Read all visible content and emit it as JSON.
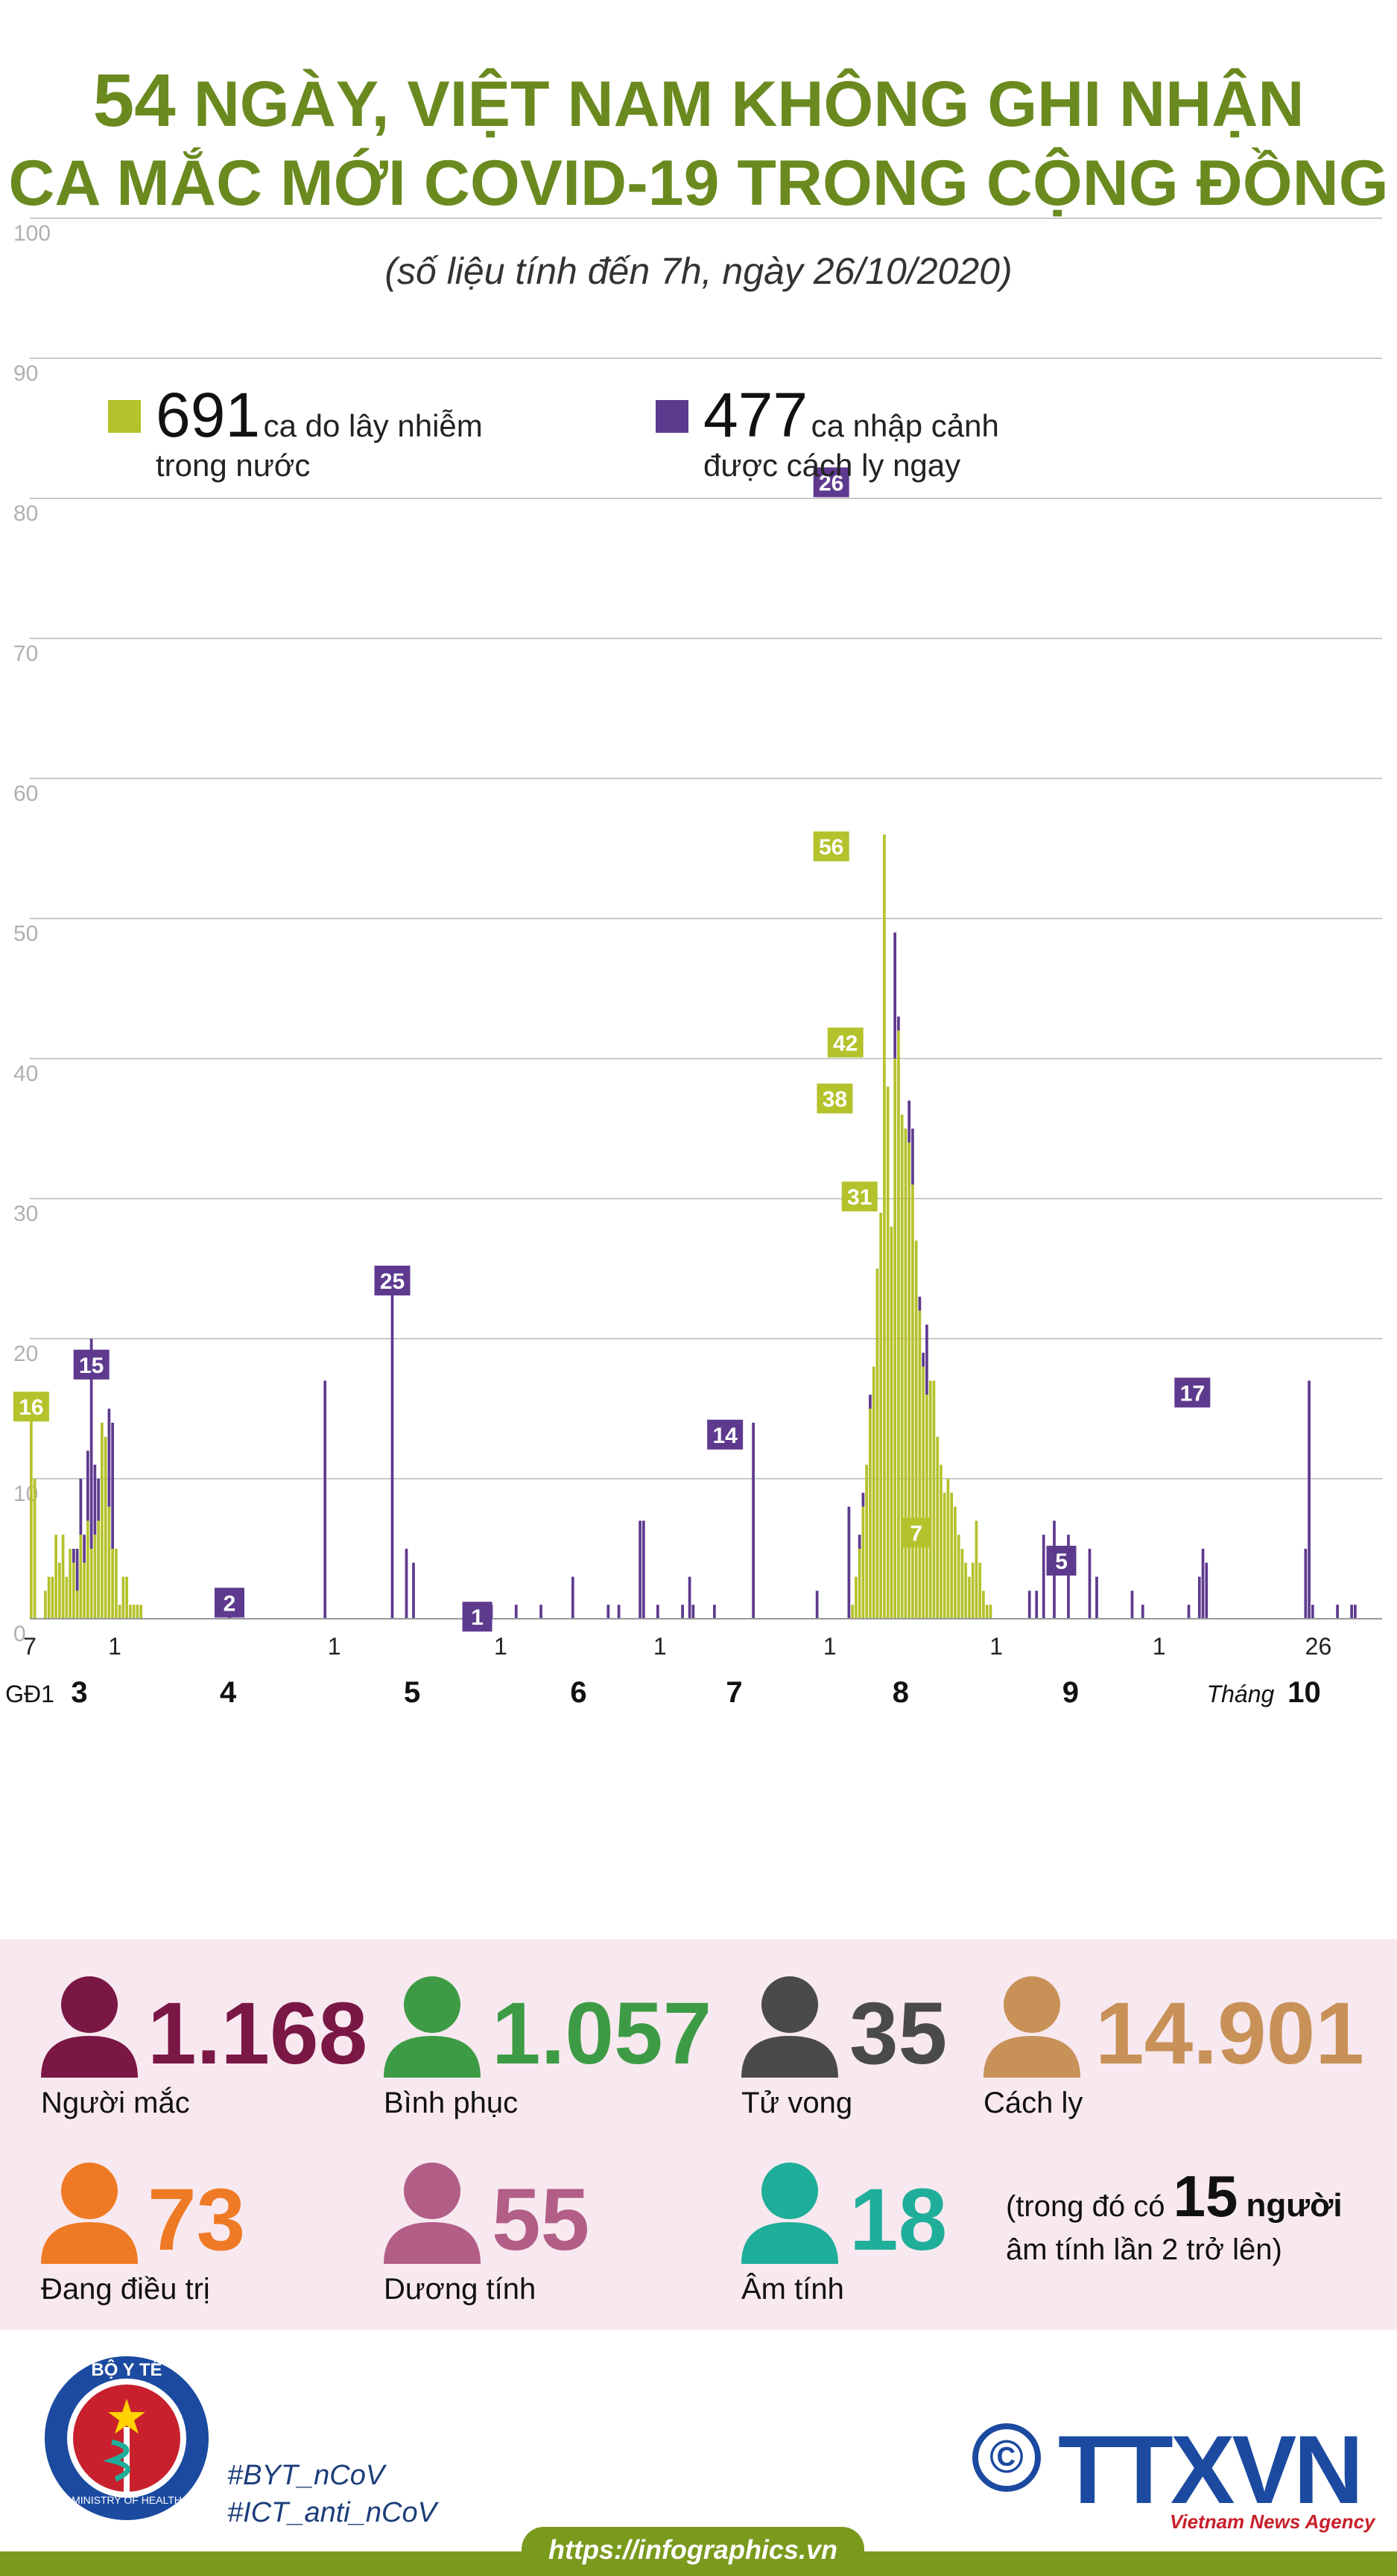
{
  "title": {
    "line1_number": "54",
    "line1_text": "NGÀY, VIỆT NAM KHÔNG GHI NHẬN",
    "line2": "CA MẮC MỚI COVID-19 TRONG CỘNG ĐỒNG"
  },
  "subtitle": "(số liệu tính đến 7h, ngày 26/10/2020)",
  "legend": [
    {
      "number": "691",
      "text1": "ca do lây nhiễm",
      "text2": "trong nước",
      "color": "#b4c22c"
    },
    {
      "number": "477",
      "text1": "ca nhập cảnh",
      "text2": "được cách ly ngay",
      "color": "#5e3a8e"
    }
  ],
  "chart_data": {
    "type": "bar",
    "stacked": true,
    "ylim": [
      0,
      100
    ],
    "yticks": [
      "0",
      "10",
      "20",
      "30",
      "40",
      "50",
      "60",
      "70",
      "80",
      "90",
      "100"
    ],
    "grid": true,
    "series": [
      {
        "name": "ca do lây nhiễm trong nước",
        "color": "#b4c22c",
        "values": [
          16,
          10,
          0,
          0,
          2,
          3,
          3,
          6,
          4,
          6,
          3,
          5,
          4,
          2,
          6,
          4,
          7,
          5,
          6,
          7,
          14,
          13,
          8,
          5,
          5,
          1,
          3,
          3,
          1,
          1,
          1,
          1,
          0,
          0,
          0,
          0,
          0,
          0,
          0,
          0,
          0,
          0,
          0,
          0,
          0,
          0,
          0,
          0,
          0,
          0,
          0,
          0,
          0,
          0,
          0,
          0,
          0,
          0,
          0,
          0,
          0,
          0,
          0,
          0,
          0,
          0,
          0,
          0,
          0,
          0,
          0,
          0,
          0,
          0,
          0,
          0,
          0,
          0,
          0,
          0,
          0,
          0,
          0,
          0,
          0,
          0,
          0,
          0,
          0,
          0,
          0,
          0,
          0,
          0,
          0,
          0,
          0,
          0,
          0,
          0,
          0,
          0,
          0,
          0,
          0,
          0,
          0,
          0,
          0,
          0,
          0,
          0,
          0,
          0,
          0,
          0,
          0,
          0,
          0,
          0,
          0,
          0,
          0,
          0,
          0,
          0,
          0,
          0,
          0,
          0,
          0,
          0,
          0,
          0,
          0,
          0,
          0,
          0,
          0,
          0,
          0,
          0,
          0,
          0,
          0,
          0,
          0,
          0,
          0,
          0,
          0,
          0,
          0,
          0,
          0,
          0,
          0,
          0,
          0,
          0,
          0,
          0,
          0,
          0,
          0,
          0,
          0,
          0,
          0,
          0,
          0,
          0,
          0,
          0,
          0,
          0,
          0,
          0,
          0,
          0,
          0,
          0,
          0,
          0,
          0,
          0,
          0,
          0,
          0,
          0,
          0,
          0,
          0,
          0,
          0,
          0,
          0,
          0,
          0,
          0,
          0,
          0,
          0,
          0,
          0,
          0,
          0,
          0,
          0,
          0,
          0,
          0,
          0,
          0,
          0,
          0,
          0,
          0,
          0,
          0,
          0,
          0,
          0,
          0,
          0,
          0,
          0,
          0,
          0,
          0,
          0,
          0,
          1,
          3,
          5,
          8,
          11,
          15,
          18,
          25,
          29,
          56,
          38,
          28,
          40,
          42,
          36,
          35,
          34,
          31,
          27,
          22,
          18,
          16,
          17,
          17,
          13,
          11,
          9,
          10,
          9,
          8,
          6,
          5,
          4,
          3,
          4,
          7,
          4,
          2,
          1,
          1,
          0,
          0,
          0,
          0,
          0,
          0,
          0,
          0,
          0,
          0,
          0,
          0,
          0,
          0,
          0,
          0,
          0,
          0,
          0,
          0,
          0,
          0,
          0,
          0,
          0,
          0,
          0,
          0,
          0,
          0,
          0,
          0,
          0,
          0,
          0,
          0,
          0,
          0,
          0,
          0,
          0,
          0,
          0,
          0,
          0,
          0,
          0,
          0,
          0,
          0,
          0,
          0,
          0,
          0,
          0,
          0,
          0,
          0,
          0,
          0,
          0,
          0,
          0,
          0,
          0,
          0,
          0,
          0,
          0,
          0,
          0,
          0,
          0,
          0,
          0,
          0,
          0,
          0,
          0,
          0,
          0,
          0,
          0,
          0,
          0,
          0,
          0,
          0,
          0,
          0,
          0,
          0,
          0,
          0,
          0,
          0,
          0,
          0,
          0,
          0,
          0,
          0,
          0,
          0,
          0,
          0,
          0,
          0,
          0,
          0
        ]
      },
      {
        "name": "ca nhập cảnh được cách ly ngay",
        "color": "#5e3a8e",
        "values": [
          0,
          0,
          0,
          0,
          0,
          0,
          0,
          0,
          0,
          0,
          0,
          0,
          1,
          3,
          4,
          2,
          5,
          15,
          5,
          3,
          0,
          0,
          7,
          9,
          0,
          0,
          0,
          0,
          0,
          0,
          0,
          0,
          0,
          0,
          0,
          0,
          0,
          0,
          0,
          0,
          0,
          0,
          0,
          0,
          0,
          0,
          0,
          0,
          0,
          0,
          0,
          0,
          0,
          0,
          0,
          0,
          2,
          0,
          0,
          0,
          0,
          0,
          0,
          0,
          0,
          0,
          0,
          0,
          0,
          0,
          0,
          0,
          0,
          0,
          0,
          0,
          0,
          0,
          0,
          0,
          0,
          0,
          0,
          17,
          0,
          0,
          0,
          0,
          0,
          0,
          0,
          0,
          0,
          0,
          0,
          0,
          0,
          0,
          0,
          0,
          0,
          0,
          25,
          0,
          0,
          0,
          5,
          0,
          4,
          0,
          0,
          0,
          0,
          0,
          0,
          0,
          0,
          0,
          0,
          0,
          0,
          0,
          0,
          0,
          0,
          0,
          0,
          0,
          1,
          1,
          1,
          0,
          0,
          0,
          0,
          0,
          0,
          1,
          0,
          0,
          0,
          0,
          0,
          0,
          1,
          0,
          0,
          0,
          0,
          0,
          0,
          0,
          0,
          3,
          0,
          0,
          0,
          0,
          0,
          0,
          0,
          0,
          0,
          1,
          0,
          0,
          1,
          0,
          0,
          0,
          0,
          0,
          7,
          7,
          0,
          0,
          0,
          1,
          0,
          0,
          0,
          0,
          0,
          0,
          1,
          0,
          3,
          1,
          0,
          0,
          0,
          0,
          0,
          1,
          0,
          0,
          0,
          0,
          0,
          0,
          0,
          0,
          0,
          0,
          14,
          0,
          0,
          0,
          0,
          0,
          0,
          0,
          0,
          0,
          0,
          0,
          0,
          0,
          0,
          0,
          0,
          0,
          2,
          0,
          0,
          0,
          0,
          0,
          0,
          0,
          0,
          8,
          0,
          0,
          1,
          1,
          0,
          1,
          0,
          0,
          0,
          0,
          0,
          0,
          9,
          1,
          0,
          0,
          3,
          4,
          0,
          1,
          1,
          5,
          0,
          0,
          0,
          0,
          0,
          0,
          0,
          0,
          0,
          0,
          0,
          0,
          0,
          0,
          0,
          0,
          0,
          0,
          0,
          0,
          0,
          0,
          0,
          0,
          0,
          0,
          0,
          0,
          2,
          0,
          2,
          0,
          6,
          0,
          0,
          7,
          0,
          0,
          0,
          6,
          0,
          0,
          0,
          0,
          0,
          5,
          0,
          3,
          0,
          0,
          0,
          0,
          0,
          0,
          0,
          0,
          0,
          2,
          0,
          0,
          1,
          0,
          0,
          0,
          0,
          0,
          0,
          0,
          0,
          0,
          0,
          0,
          0,
          1,
          0,
          0,
          3,
          5,
          4,
          0,
          0,
          0,
          0,
          0,
          0,
          0,
          0,
          0,
          0,
          0,
          0,
          0,
          0,
          0,
          0,
          0,
          0,
          0,
          0,
          0,
          0,
          0,
          0,
          0,
          0,
          0,
          5,
          17,
          1,
          0,
          0,
          0,
          0,
          0,
          0,
          1,
          0,
          0,
          0,
          1,
          1,
          0,
          0,
          0,
          0,
          0,
          0,
          0,
          0,
          0,
          0,
          0,
          0,
          0,
          0,
          0,
          1,
          1,
          1,
          1,
          1,
          1,
          1,
          1,
          1,
          0,
          0,
          0,
          0,
          0,
          0,
          0,
          0,
          0,
          0,
          1,
          1,
          1,
          3,
          1,
          1,
          1,
          2,
          1,
          0,
          0,
          0,
          0,
          0,
          0,
          0,
          0,
          8,
          0,
          0,
          0,
          0,
          0,
          6,
          0,
          0,
          3,
          0,
          0,
          0,
          12,
          8,
          0
        ]
      }
    ],
    "annotations": [
      {
        "index": 0,
        "label": "16",
        "value": 16,
        "series": 0
      },
      {
        "index": 17,
        "label": "15",
        "value": 19,
        "series": 1
      },
      {
        "index": 56,
        "label": "2",
        "value": 2,
        "series": 1
      },
      {
        "index": 102,
        "label": "25",
        "value": 25,
        "series": 1
      },
      {
        "index": 126,
        "label": "1",
        "value": 1,
        "series": 1
      },
      {
        "index": 196,
        "label": "14",
        "value": 14,
        "series": 1
      },
      {
        "index": 226,
        "label": "26",
        "value": 82,
        "series": 1
      },
      {
        "index": 226,
        "label": "56",
        "value": 56,
        "series": 0
      },
      {
        "index": 227,
        "label": "38",
        "value": 38,
        "series": 0
      },
      {
        "index": 230,
        "label": "42",
        "value": 42,
        "series": 0
      },
      {
        "index": 234,
        "label": "31",
        "value": 31,
        "series": 0
      },
      {
        "index": 250,
        "label": "7",
        "value": 7,
        "series": 0
      },
      {
        "index": 291,
        "label": "5",
        "value": 5,
        "series": 1
      },
      {
        "index": 328,
        "label": "17",
        "value": 17,
        "series": 1
      },
      {
        "index": 406,
        "label": "0",
        "value": 0,
        "series": 0
      }
    ],
    "x_day_ticks": [
      {
        "index": 0,
        "label": "7"
      },
      {
        "index": 24,
        "label": "1"
      },
      {
        "index": 86,
        "label": "1"
      },
      {
        "index": 133,
        "label": "1"
      },
      {
        "index": 178,
        "label": "1"
      },
      {
        "index": 226,
        "label": "1"
      },
      {
        "index": 273,
        "label": "1"
      },
      {
        "index": 319,
        "label": "1"
      },
      {
        "index": 364,
        "label": "26"
      }
    ],
    "x_month_labels": [
      {
        "index": 0,
        "label": "GĐ1"
      },
      {
        "index": 14,
        "label": "3"
      },
      {
        "index": 56,
        "label": "4"
      },
      {
        "index": 108,
        "label": "5"
      },
      {
        "index": 155,
        "label": "6"
      },
      {
        "index": 199,
        "label": "7"
      },
      {
        "index": 246,
        "label": "8"
      },
      {
        "index": 294,
        "label": "9"
      },
      {
        "index": 342,
        "label": "Tháng"
      },
      {
        "index": 360,
        "label": "10"
      }
    ]
  },
  "stats": [
    {
      "value": "1.168",
      "label": "Người mắc",
      "color": "#7a1745"
    },
    {
      "value": "1.057",
      "label": "Bình phục",
      "color": "#3e9b45"
    },
    {
      "value": "35",
      "label": "Tử vong",
      "color": "#4a4a4a"
    },
    {
      "value": "14.901",
      "label": "Cách ly",
      "color": "#c89158"
    },
    {
      "value": "73",
      "label": "Đang điều trị",
      "color": "#ef7a25"
    },
    {
      "value": "55",
      "label": "Dương tính",
      "color": "#b25e86"
    },
    {
      "value": "18",
      "label": "Âm tính",
      "color": "#1fae99"
    }
  ],
  "note": {
    "prefix": "(trong đó có",
    "number": "15",
    "suffix": "người",
    "line2": "âm tính lần 2 trở lên)"
  },
  "logo": {
    "ministry_top": "BỘ Y TẾ",
    "ministry_bottom": "MINISTRY OF HEALTH"
  },
  "hashtags": [
    "#BYT_nCoV",
    "#ICT_anti_nCoV"
  ],
  "brand": {
    "name": "TTXVN",
    "sub": "Vietnam News Agency",
    "copyright": "©"
  },
  "footer_url": "https://infographics.vn"
}
